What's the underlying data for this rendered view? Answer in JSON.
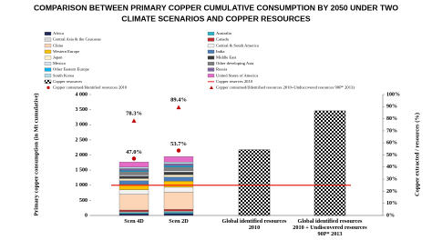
{
  "chart_data": {
    "type": "stacked-bar",
    "title_lines": [
      "COMPARISON BETWEEN PRIMARY COPPER CUMULATIVE CONSUMPTION BY 2050 UNDER TWO",
      "CLIMATE SCENARIOS AND COPPER RESOURCES"
    ],
    "y_label": "Primary copper consumption (in Mt cumulative)",
    "y2_label": "Copper extracted / resources (%)",
    "categories": [
      "Scen 4D",
      "Scen 2D",
      "Global identified resources 2010",
      "Global identified resources 2010 + Undiscovered resources 90P* 2013"
    ],
    "series": [
      {
        "name": "Africa",
        "color": "#1f2a5a",
        "values": [
          60,
          65,
          null,
          null
        ]
      },
      {
        "name": "Australia",
        "color": "#2bb5c8",
        "values": [
          40,
          45,
          null,
          null
        ]
      },
      {
        "name": "Central Asia & the Caucasus",
        "color": "#d9d9d9",
        "values": [
          30,
          35,
          null,
          null
        ]
      },
      {
        "name": "Canada",
        "color": "#c0282d",
        "values": [
          50,
          55,
          null,
          null
        ]
      },
      {
        "name": "China",
        "color": "#fbd5b5",
        "values": [
          520,
          570,
          null,
          null
        ]
      },
      {
        "name": "Central & South America",
        "color": "#f2f2f2",
        "values": [
          150,
          165,
          null,
          null
        ]
      },
      {
        "name": "Western Europe",
        "color": "#ffc000",
        "values": [
          180,
          200,
          null,
          null
        ]
      },
      {
        "name": "India",
        "color": "#4a7ebb",
        "values": [
          120,
          135,
          null,
          null
        ]
      },
      {
        "name": "Japan",
        "color": "#fff2cc",
        "values": [
          70,
          75,
          null,
          null
        ]
      },
      {
        "name": "Middle East",
        "color": "#3b3b3b",
        "values": [
          80,
          90,
          null,
          null
        ]
      },
      {
        "name": "Mexico",
        "color": "#dbe5f1",
        "values": [
          40,
          45,
          null,
          null
        ]
      },
      {
        "name": "Other developing Asia",
        "color": "#7f7f7f",
        "values": [
          110,
          120,
          null,
          null
        ]
      },
      {
        "name": "Other Eastern Europe",
        "color": "#00b0f0",
        "values": [
          40,
          45,
          null,
          null
        ]
      },
      {
        "name": "Russia",
        "color": "#8064a2",
        "values": [
          60,
          65,
          null,
          null
        ]
      },
      {
        "name": "South Korea",
        "color": "#b7dee8",
        "values": [
          50,
          55,
          null,
          null
        ]
      },
      {
        "name": "United States of America",
        "color": "#e46cc6",
        "values": [
          170,
          185,
          null,
          null
        ]
      }
    ],
    "resources": {
      "name": "Copper resources",
      "values": [
        null,
        null,
        2170,
        3460
      ]
    },
    "reserves": {
      "name": "Copper reserves 2010",
      "color": "#e8231b",
      "value": 1000
    },
    "ratio_identified": {
      "name": "Copper consumed/Identified resources 2010",
      "color": "#c00000",
      "axis": "y2",
      "values": [
        47.0,
        53.7
      ],
      "value_labels": [
        "47.0%",
        "53.7%"
      ]
    },
    "ratio_total": {
      "name": "Copper consumed/(Identified resources 2010+Undiscovered resources 90P* 2013)",
      "color": "#c00000",
      "axis": "y2",
      "values": [
        78.3,
        89.4
      ],
      "value_labels": [
        "78.3%",
        "89.4%"
      ]
    },
    "ylim": [
      0,
      4000
    ],
    "yticks": [
      0,
      500,
      {
        "value": 1000,
        "label": "1 000"
      },
      {
        "value": 1500,
        "label": "1 500"
      },
      {
        "value": 2000,
        "label": "2 000"
      },
      {
        "value": 2500,
        "label": "2 500"
      },
      {
        "value": 3000,
        "label": "3 000"
      },
      {
        "value": 3500,
        "label": "3 500"
      },
      {
        "value": 4000,
        "label": "4 000"
      }
    ],
    "y2lim": [
      0,
      100
    ],
    "y2ticks": [
      {
        "value": 0,
        "label": "0%"
      },
      {
        "value": 10,
        "label": "10%"
      },
      {
        "value": 20,
        "label": "20%"
      },
      {
        "value": 30,
        "label": "30%"
      },
      {
        "value": 40,
        "label": "40%"
      },
      {
        "value": 50,
        "label": "50%"
      },
      {
        "value": 60,
        "label": "60%"
      },
      {
        "value": 70,
        "label": "70%"
      },
      {
        "value": 80,
        "label": "80%"
      },
      {
        "value": 90,
        "label": "90%"
      },
      {
        "value": 100,
        "label": "100%"
      }
    ]
  }
}
